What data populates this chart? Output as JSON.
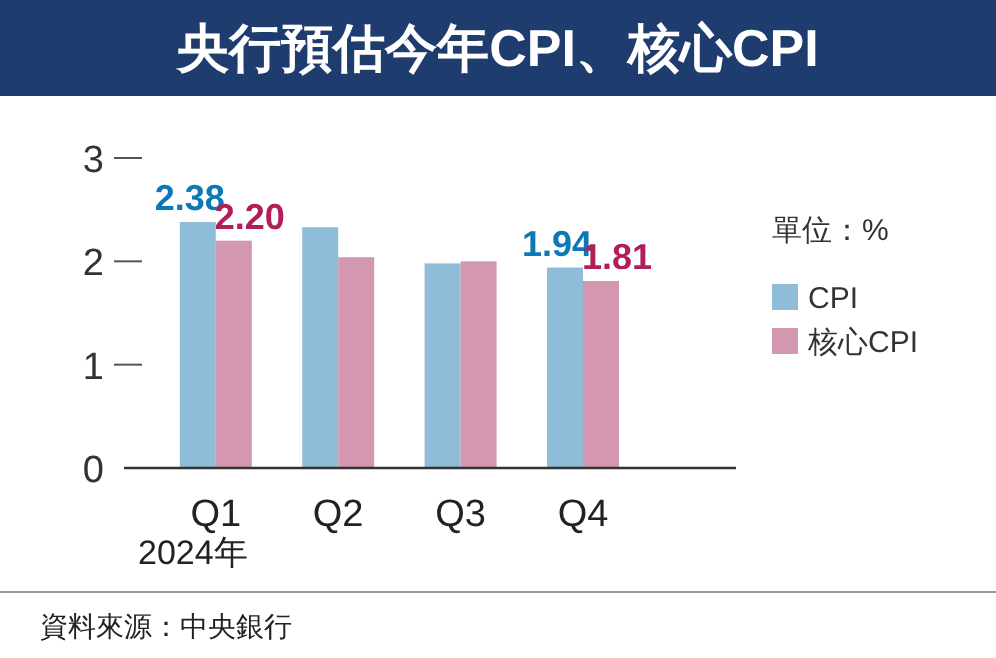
{
  "chart_data": {
    "type": "bar",
    "title": "央行預估今年CPI、核心CPI",
    "xlabel": "2024年",
    "legend_title": "單位：%",
    "categories": [
      "Q1",
      "Q2",
      "Q3",
      "Q4"
    ],
    "series": [
      {
        "name": "CPI",
        "color": "#8fbcd6",
        "values": [
          2.38,
          2.33,
          1.98,
          1.94
        ],
        "value_labels": [
          "2.38",
          null,
          null,
          "1.94"
        ]
      },
      {
        "name": "核心CPI",
        "color": "#d497b0",
        "values": [
          2.2,
          2.04,
          2.0,
          1.81
        ],
        "value_labels": [
          "2.20",
          null,
          null,
          "1.81"
        ]
      }
    ],
    "ylim": [
      0,
      3
    ],
    "yticks": [
      0,
      1,
      2,
      3
    ],
    "grid": false,
    "legend": "right",
    "annotations": [
      "資料來源：中央銀行"
    ]
  }
}
